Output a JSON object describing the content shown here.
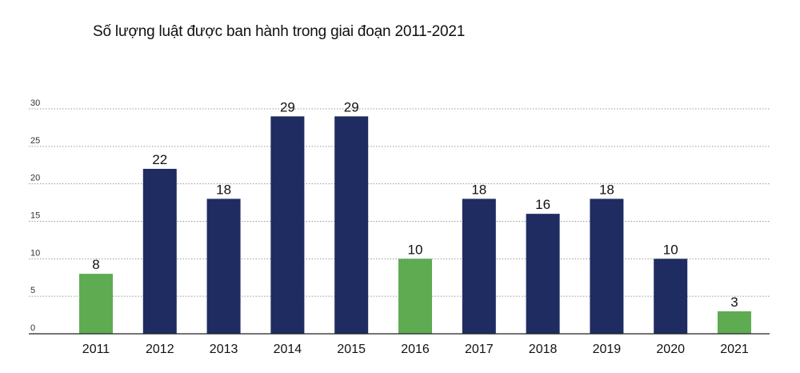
{
  "chart_data": {
    "type": "bar",
    "title": "Số lượng luật được ban hành trong giai đoạn 2011-2021",
    "categories": [
      "2011",
      "2012",
      "2013",
      "2014",
      "2015",
      "2016",
      "2017",
      "2018",
      "2019",
      "2020",
      "2021"
    ],
    "values": [
      8,
      22,
      18,
      29,
      29,
      10,
      18,
      16,
      18,
      10,
      3
    ],
    "highlight": [
      true,
      false,
      false,
      false,
      false,
      true,
      false,
      false,
      false,
      false,
      true
    ],
    "yticks": [
      0,
      5,
      10,
      15,
      20,
      25,
      30
    ],
    "ylim": [
      0,
      30
    ],
    "grid": true,
    "colors": {
      "primary": "#1f2c61",
      "highlight": "#5eab52",
      "grid": "#9a9a9a",
      "axis": "#222222"
    }
  }
}
